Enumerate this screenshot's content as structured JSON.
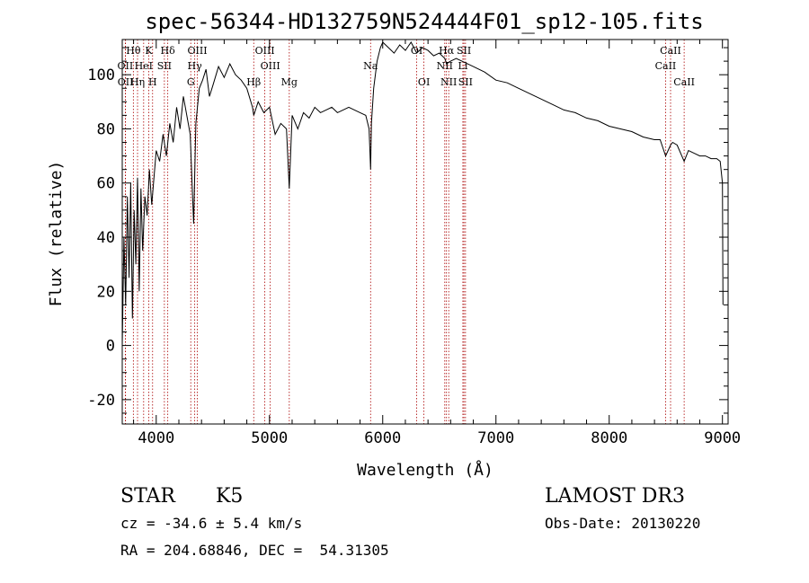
{
  "chart_data": {
    "type": "line",
    "title": "spec-56344-HD132759N524444F01_sp12-105.fits",
    "xlabel": "Wavelength (Å)",
    "ylabel": "Flux (relative)",
    "xlim": [
      3700,
      9050
    ],
    "ylim": [
      -29,
      113
    ],
    "xticks": [
      4000,
      5000,
      6000,
      7000,
      8000,
      9000
    ],
    "xtick_labels": [
      "4000",
      "5000",
      "6000",
      "7000",
      "8000",
      "9000"
    ],
    "yticks": [
      -20,
      0,
      20,
      40,
      60,
      80,
      100
    ],
    "ytick_labels": [
      "-20",
      "0",
      "20",
      "40",
      "60",
      "80",
      "100"
    ],
    "grid": false,
    "line_color": "#000000",
    "marker_color": "#aa0000",
    "series": [
      {
        "x": [
          3700,
          3715,
          3730,
          3745,
          3760,
          3775,
          3790,
          3805,
          3820,
          3835,
          3850,
          3865,
          3880,
          3900,
          3920,
          3940,
          3960,
          3980,
          4000,
          4030,
          4060,
          4090,
          4120,
          4150,
          4180,
          4210,
          4240,
          4270,
          4300,
          4330,
          4350,
          4380,
          4410,
          4440,
          4470,
          4500,
          4550,
          4600,
          4650,
          4700,
          4750,
          4800,
          4850,
          4861,
          4900,
          4950,
          5000,
          5050,
          5100,
          5150,
          5175,
          5200,
          5250,
          5300,
          5350,
          5400,
          5450,
          5500,
          5550,
          5600,
          5650,
          5700,
          5750,
          5800,
          5850,
          5880,
          5893,
          5900,
          5920,
          5950,
          5980,
          6000,
          6050,
          6100,
          6150,
          6200,
          6250,
          6300,
          6350,
          6400,
          6450,
          6500,
          6550,
          6563,
          6600,
          6650,
          6700,
          6750,
          6800,
          6900,
          7000,
          7100,
          7200,
          7300,
          7400,
          7500,
          7600,
          7700,
          7800,
          7900,
          8000,
          8100,
          8200,
          8300,
          8400,
          8450,
          8498,
          8542,
          8560,
          8600,
          8662,
          8700,
          8750,
          8800,
          8850,
          8900,
          8950,
          8980,
          9000,
          9005
        ],
        "y": [
          0,
          40,
          15,
          55,
          25,
          60,
          10,
          50,
          30,
          62,
          20,
          58,
          35,
          55,
          48,
          65,
          52,
          62,
          72,
          68,
          78,
          70,
          82,
          75,
          88,
          80,
          92,
          85,
          78,
          45,
          82,
          95,
          98,
          102,
          92,
          96,
          103,
          99,
          104,
          100,
          98,
          95,
          88,
          85,
          90,
          86,
          88,
          78,
          82,
          80,
          58,
          85,
          80,
          86,
          84,
          88,
          86,
          87,
          88,
          86,
          87,
          88,
          87,
          86,
          85,
          80,
          65,
          82,
          95,
          105,
          110,
          112,
          110,
          108,
          111,
          109,
          112,
          108,
          110,
          109,
          107,
          108,
          106,
          104,
          105,
          106,
          105,
          104,
          103,
          101,
          98,
          97,
          95,
          93,
          91,
          89,
          87,
          86,
          84,
          83,
          81,
          80,
          79,
          77,
          76,
          76,
          70,
          74,
          75,
          74,
          68,
          72,
          71,
          70,
          70,
          69,
          69,
          68,
          60,
          15
        ]
      }
    ],
    "spectral_lines": [
      {
        "label": "Hθ",
        "wavelength": 3798,
        "row": 0
      },
      {
        "label": "K",
        "wavelength": 3934,
        "row": 0
      },
      {
        "label": "Hδ",
        "wavelength": 4102,
        "row": 0
      },
      {
        "label": "OIII",
        "wavelength": 4363,
        "row": 0
      },
      {
        "label": "OIII",
        "wavelength": 4959,
        "row": 0
      },
      {
        "label": "OI",
        "wavelength": 6300,
        "row": 0
      },
      {
        "label": "Hα",
        "wavelength": 6563,
        "row": 0
      },
      {
        "label": "SII",
        "wavelength": 6717,
        "row": 0
      },
      {
        "label": "CaII",
        "wavelength": 8542,
        "row": 0
      },
      {
        "label": "OII",
        "wavelength": 3727,
        "row": 1
      },
      {
        "label": "HeI",
        "wavelength": 3889,
        "row": 1
      },
      {
        "label": "SII",
        "wavelength": 4072,
        "row": 1
      },
      {
        "label": "Hγ",
        "wavelength": 4340,
        "row": 1
      },
      {
        "label": "OIII",
        "wavelength": 5007,
        "row": 1
      },
      {
        "label": "Na",
        "wavelength": 5893,
        "row": 1
      },
      {
        "label": "NII",
        "wavelength": 6548,
        "row": 1
      },
      {
        "label": "Li",
        "wavelength": 6708,
        "row": 1
      },
      {
        "label": "CaII",
        "wavelength": 8498,
        "row": 1
      },
      {
        "label": "OII",
        "wavelength": 3729,
        "row": 2
      },
      {
        "label": "Hη",
        "wavelength": 3835,
        "row": 2
      },
      {
        "label": "H",
        "wavelength": 3968,
        "row": 2
      },
      {
        "label": "G",
        "wavelength": 4305,
        "row": 2
      },
      {
        "label": "Hβ",
        "wavelength": 4861,
        "row": 2
      },
      {
        "label": "Mg",
        "wavelength": 5175,
        "row": 2
      },
      {
        "label": "OI",
        "wavelength": 6364,
        "row": 2
      },
      {
        "label": "NII",
        "wavelength": 6583,
        "row": 2
      },
      {
        "label": "SII",
        "wavelength": 6731,
        "row": 2
      },
      {
        "label": "CaII",
        "wavelength": 8662,
        "row": 2
      }
    ]
  },
  "info": {
    "object_type": "STAR",
    "subclass": "K5",
    "survey": "LAMOST DR3",
    "redshift": "cz = -34.6 ± 5.4 km/s",
    "obs_date": "Obs-Date: 20130220",
    "coords": "RA = 204.68846, DEC =  54.31305"
  }
}
